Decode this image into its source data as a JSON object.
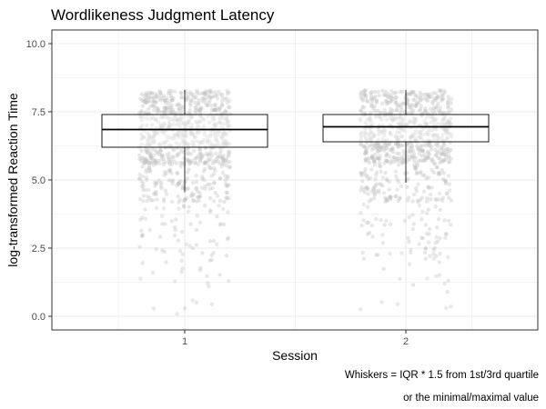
{
  "chart_data": {
    "type": "box",
    "title": "Wordlikeness Judgment Latency",
    "xlabel": "Session",
    "ylabel": "log-transformed Reaction Time",
    "categories": [
      "1",
      "2"
    ],
    "ylim": [
      -0.5,
      10.5
    ],
    "yticks": [
      0.0,
      2.5,
      5.0,
      7.5,
      10.0
    ],
    "ytick_labels": [
      "0.0",
      "2.5",
      "5.0",
      "7.5",
      "10.0"
    ],
    "grid": true,
    "legend": "none",
    "boxes": [
      {
        "category": "1",
        "whisker_low": 4.55,
        "q1": 6.2,
        "median": 6.85,
        "q3": 7.4,
        "whisker_high": 8.3
      },
      {
        "category": "2",
        "whisker_low": 4.9,
        "q1": 6.4,
        "median": 6.95,
        "q3": 7.4,
        "whisker_high": 8.3
      }
    ],
    "points": {
      "description_of_spread": "jittered raw observations, dense between about 4.5 and 8.3, sparser down to 0",
      "range": [
        0.0,
        8.3
      ]
    },
    "captions": [
      "Whiskers = IQR * 1.5 from 1st/3rd quartile",
      "or the minimal/maximal value"
    ],
    "colors": {
      "points": "#bdbdbd",
      "box_fill": "#ffffff",
      "box_stroke": "#000000",
      "grid": "#ebebeb",
      "panel_border": "#333333"
    }
  }
}
